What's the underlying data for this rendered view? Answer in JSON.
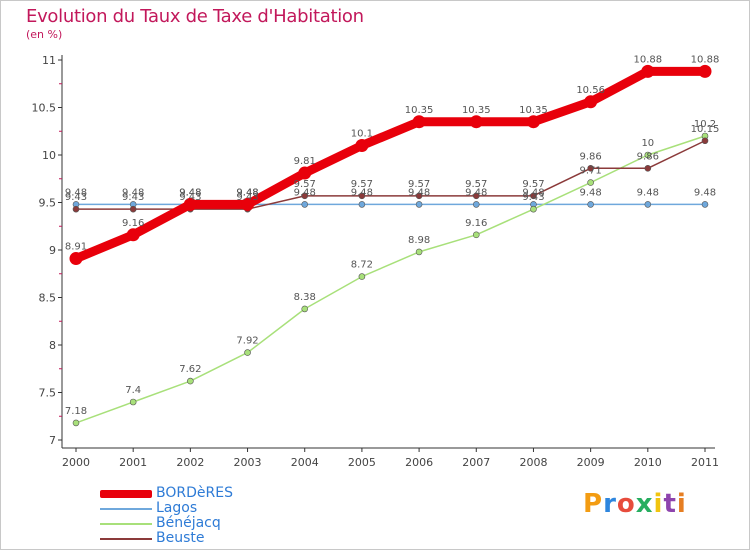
{
  "chart_data": {
    "type": "line",
    "title": "Evolution du Taux de Taxe d'Habitation",
    "subtitle": "(en %)",
    "x": [
      "2000",
      "2001",
      "2002",
      "2003",
      "2004",
      "2005",
      "2006",
      "2007",
      "2008",
      "2009",
      "2010",
      "2011"
    ],
    "ylim": [
      7,
      11
    ],
    "yticks": [
      "7",
      "7.5",
      "8",
      "8.5",
      "9",
      "9.5",
      "10",
      "10.5",
      "11"
    ],
    "grid": false,
    "legend_position": "bottom-left",
    "series": [
      {
        "name": "BORDèRES",
        "color": "#e8000b",
        "values": [
          8.91,
          9.16,
          9.48,
          9.48,
          9.81,
          10.1,
          10.35,
          10.35,
          10.35,
          10.56,
          10.88,
          10.88
        ],
        "labels": [
          "8.91",
          "9.16",
          "9.48",
          "9.48",
          "9.81",
          "10.1",
          "10.35",
          "10.35",
          "10.35",
          "10.56",
          "10.88",
          "10.88"
        ]
      },
      {
        "name": "Lagos",
        "color": "#6fa8dc",
        "values": [
          9.48,
          9.48,
          9.48,
          9.48,
          9.48,
          9.48,
          9.48,
          9.48,
          9.48,
          9.48,
          9.48,
          9.48
        ],
        "labels": [
          "9.48",
          "9.48",
          "9.48",
          "9.48",
          "9.48",
          "9.48",
          "9.48",
          "9.48",
          "9.48",
          "9.48",
          "9.48",
          "9.48"
        ]
      },
      {
        "name": "Bénéjacq",
        "color": "#a8e07a",
        "values": [
          7.18,
          7.4,
          7.62,
          7.92,
          8.38,
          8.72,
          8.98,
          9.16,
          9.43,
          9.71,
          10,
          10.2
        ],
        "labels": [
          "7.18",
          "7.4",
          "7.62",
          "7.92",
          "8.38",
          "8.72",
          "8.98",
          "9.16",
          "9.43",
          "9.71",
          "10",
          "10.2"
        ]
      },
      {
        "name": "Beuste",
        "color": "#8b3a3a",
        "values": [
          9.43,
          9.43,
          9.43,
          9.43,
          9.57,
          9.57,
          9.57,
          9.57,
          9.57,
          9.86,
          9.86,
          10.15
        ],
        "labels": [
          "9.43",
          "9.43",
          "9.43",
          "9.43",
          "9.57",
          "9.57",
          "9.57",
          "9.57",
          "9.57",
          "9.86",
          "9.86",
          "10.15"
        ]
      }
    ]
  },
  "logo": {
    "letters": [
      "P",
      "r",
      "o",
      "x",
      "i",
      "t",
      "i"
    ],
    "colors": [
      "#f39c12",
      "#2e86de",
      "#e74c3c",
      "#27ae60",
      "#f1c40f",
      "#8e44ad",
      "#e67e22"
    ]
  }
}
